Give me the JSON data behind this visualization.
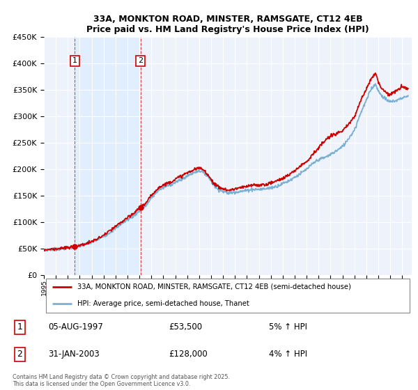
{
  "title": "33A, MONKTON ROAD, MINSTER, RAMSGATE, CT12 4EB",
  "subtitle": "Price paid vs. HM Land Registry's House Price Index (HPI)",
  "legend_line1": "33A, MONKTON ROAD, MINSTER, RAMSGATE, CT12 4EB (semi-detached house)",
  "legend_line2": "HPI: Average price, semi-detached house, Thanet",
  "sale1_label": "1",
  "sale1_date": "05-AUG-1997",
  "sale1_price": "£53,500",
  "sale1_hpi": "5% ↑ HPI",
  "sale2_label": "2",
  "sale2_date": "31-JAN-2003",
  "sale2_price": "£128,000",
  "sale2_hpi": "4% ↑ HPI",
  "footnote": "Contains HM Land Registry data © Crown copyright and database right 2025.\nThis data is licensed under the Open Government Licence v3.0.",
  "red_color": "#cc0000",
  "blue_color": "#7ab0d4",
  "shade_color": "#ddeeff",
  "bg_color": "#eef2fa",
  "sale1_x": 1997.58,
  "sale1_y": 53500,
  "sale2_x": 2003.08,
  "sale2_y": 128000,
  "ylim": [
    0,
    450000
  ],
  "xlim_start": 1995,
  "xlim_end": 2025.8
}
